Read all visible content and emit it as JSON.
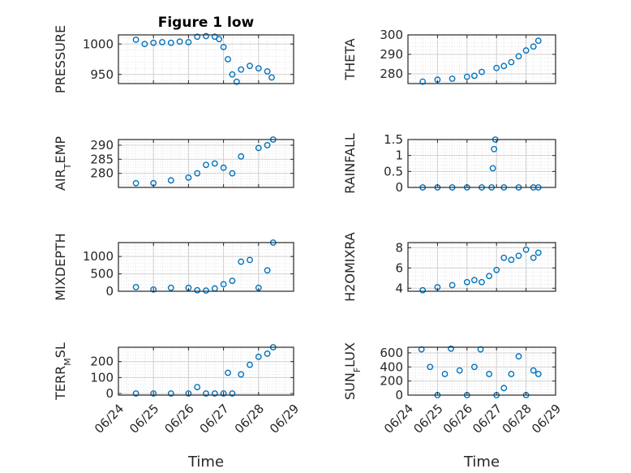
{
  "figure": {
    "title": "Figure 1 low",
    "marker_color": "#0072BD"
  },
  "chart_data": [
    {
      "type": "scatter",
      "panel": "top-left",
      "title": "Figure 1 low",
      "ylabel": "PRESSURE",
      "ylabel_sub": "",
      "ylabel_post": "",
      "xlabel": "",
      "ylim": [
        935,
        1015
      ],
      "yticks": [
        950,
        1000
      ],
      "grid": true,
      "x": [
        "06/24 12:00",
        "06/24 18:00",
        "06/25 00:00",
        "06/25 06:00",
        "06/25 12:00",
        "06/25 18:00",
        "06/26 00:00",
        "06/26 06:00",
        "06/26 12:00",
        "06/26 18:00",
        "06/26 21:00",
        "06/27 00:00",
        "06/27 03:00",
        "06/27 06:00",
        "06/27 09:00",
        "06/27 12:00",
        "06/27 18:00",
        "06/28 00:00",
        "06/28 06:00",
        "06/28 09:00"
      ],
      "y": [
        1007,
        1000,
        1002,
        1003,
        1002,
        1004,
        1003,
        1012,
        1013,
        1012,
        1008,
        995,
        975,
        950,
        938,
        958,
        964,
        960,
        955,
        945
      ]
    },
    {
      "type": "scatter",
      "panel": "top-right",
      "ylabel": "THETA",
      "ylabel_sub": "",
      "ylabel_post": "",
      "xlabel": "",
      "ylim": [
        275,
        300
      ],
      "yticks": [
        280,
        290,
        300
      ],
      "grid": true,
      "x": [
        "06/24 12:00",
        "06/25 00:00",
        "06/25 12:00",
        "06/26 00:00",
        "06/26 06:00",
        "06/26 12:00",
        "06/27 00:00",
        "06/27 06:00",
        "06/27 12:00",
        "06/27 18:00",
        "06/28 00:00",
        "06/28 06:00",
        "06/28 10:00"
      ],
      "y": [
        276,
        277,
        277.5,
        278.5,
        279,
        281,
        283,
        284,
        286,
        289,
        292,
        294,
        297
      ]
    },
    {
      "type": "scatter",
      "panel": "second-left",
      "ylabel": "AIR",
      "ylabel_sub": "T",
      "ylabel_post": "EMP",
      "xlabel": "",
      "ylim": [
        275,
        292
      ],
      "yticks": [
        280,
        285,
        290
      ],
      "grid": true,
      "x": [
        "06/24 12:00",
        "06/25 00:00",
        "06/25 12:00",
        "06/26 00:00",
        "06/26 06:00",
        "06/26 12:00",
        "06/26 18:00",
        "06/27 00:00",
        "06/27 06:00",
        "06/27 12:00",
        "06/28 00:00",
        "06/28 06:00",
        "06/28 10:00"
      ],
      "y": [
        276.5,
        276.5,
        277.5,
        278.5,
        280,
        283,
        283.5,
        282,
        280,
        286,
        289,
        290,
        292
      ]
    },
    {
      "type": "scatter",
      "panel": "second-right",
      "ylabel": "RAINFALL",
      "ylabel_sub": "",
      "ylabel_post": "",
      "xlabel": "",
      "ylim": [
        0,
        1.5
      ],
      "yticks": [
        0,
        0.5,
        1,
        1.5
      ],
      "grid": true,
      "x": [
        "06/24 12:00",
        "06/25 00:00",
        "06/25 12:00",
        "06/26 00:00",
        "06/26 12:00",
        "06/26 20:00",
        "06/26 21:00",
        "06/26 22:00",
        "06/26 23:00",
        "06/27 06:00",
        "06/27 18:00",
        "06/28 06:00",
        "06/28 10:00"
      ],
      "y": [
        0,
        0,
        0,
        0,
        0,
        0,
        0.6,
        1.2,
        1.5,
        0,
        0,
        0,
        0
      ]
    },
    {
      "type": "scatter",
      "panel": "third-left",
      "ylabel": "MIXDEPTH",
      "ylabel_sub": "",
      "ylabel_post": "",
      "xlabel": "",
      "ylim": [
        0,
        1400
      ],
      "yticks": [
        0,
        500,
        1000
      ],
      "grid": true,
      "x": [
        "06/24 12:00",
        "06/25 00:00",
        "06/25 12:00",
        "06/26 00:00",
        "06/26 06:00",
        "06/26 12:00",
        "06/26 18:00",
        "06/27 00:00",
        "06/27 06:00",
        "06/27 12:00",
        "06/27 18:00",
        "06/28 00:00",
        "06/28 06:00",
        "06/28 10:00"
      ],
      "y": [
        120,
        50,
        100,
        100,
        30,
        20,
        80,
        200,
        300,
        850,
        900,
        100,
        600,
        1400
      ]
    },
    {
      "type": "scatter",
      "panel": "third-right",
      "ylabel": "H2OMIXRA",
      "ylabel_sub": "",
      "ylabel_post": "",
      "xlabel": "",
      "ylim": [
        3.7,
        8.5
      ],
      "yticks": [
        4,
        6,
        8
      ],
      "grid": true,
      "x": [
        "06/24 12:00",
        "06/25 00:00",
        "06/25 12:00",
        "06/26 00:00",
        "06/26 06:00",
        "06/26 12:00",
        "06/26 18:00",
        "06/27 00:00",
        "06/27 06:00",
        "06/27 12:00",
        "06/27 18:00",
        "06/28 00:00",
        "06/28 06:00",
        "06/28 10:00"
      ],
      "y": [
        3.8,
        4.1,
        4.3,
        4.6,
        4.8,
        4.6,
        5.2,
        5.8,
        7.0,
        6.8,
        7.2,
        7.8,
        7.0,
        7.5
      ]
    },
    {
      "type": "scatter",
      "panel": "bottom-left",
      "ylabel": "TERR",
      "ylabel_sub": "M",
      "ylabel_post": "SL",
      "xlabel": "Time",
      "ylim": [
        -10,
        290
      ],
      "yticks": [
        0,
        100,
        200
      ],
      "grid": true,
      "xticklabels": [
        "06/24",
        "06/25",
        "06/26",
        "06/27",
        "06/28",
        "06/29"
      ],
      "x": [
        "06/24 12:00",
        "06/25 00:00",
        "06/25 12:00",
        "06/26 00:00",
        "06/26 06:00",
        "06/26 12:00",
        "06/26 18:00",
        "06/27 00:00",
        "06/27 03:00",
        "06/27 06:00",
        "06/27 12:00",
        "06/27 18:00",
        "06/28 00:00",
        "06/28 06:00",
        "06/28 10:00"
      ],
      "y": [
        0,
        0,
        0,
        0,
        40,
        0,
        0,
        0,
        130,
        0,
        120,
        180,
        230,
        250,
        290
      ]
    },
    {
      "type": "scatter",
      "panel": "bottom-right",
      "ylabel": "SUN",
      "ylabel_sub": "F",
      "ylabel_post": "LUX",
      "xlabel": "Time",
      "ylim": [
        0,
        680
      ],
      "yticks": [
        0,
        200,
        400,
        600
      ],
      "grid": true,
      "xticklabels": [
        "06/24",
        "06/25",
        "06/26",
        "06/27",
        "06/28",
        "06/29"
      ],
      "x": [
        "06/24 11:00",
        "06/24 18:00",
        "06/25 00:00",
        "06/25 06:00",
        "06/25 11:00",
        "06/25 18:00",
        "06/26 00:00",
        "06/26 06:00",
        "06/26 11:00",
        "06/26 18:00",
        "06/27 00:00",
        "06/27 06:00",
        "06/27 12:00",
        "06/27 18:00",
        "06/28 00:00",
        "06/28 06:00",
        "06/28 10:00"
      ],
      "y": [
        650,
        400,
        0,
        300,
        660,
        350,
        0,
        400,
        650,
        300,
        0,
        100,
        300,
        550,
        0,
        350,
        300
      ]
    }
  ]
}
